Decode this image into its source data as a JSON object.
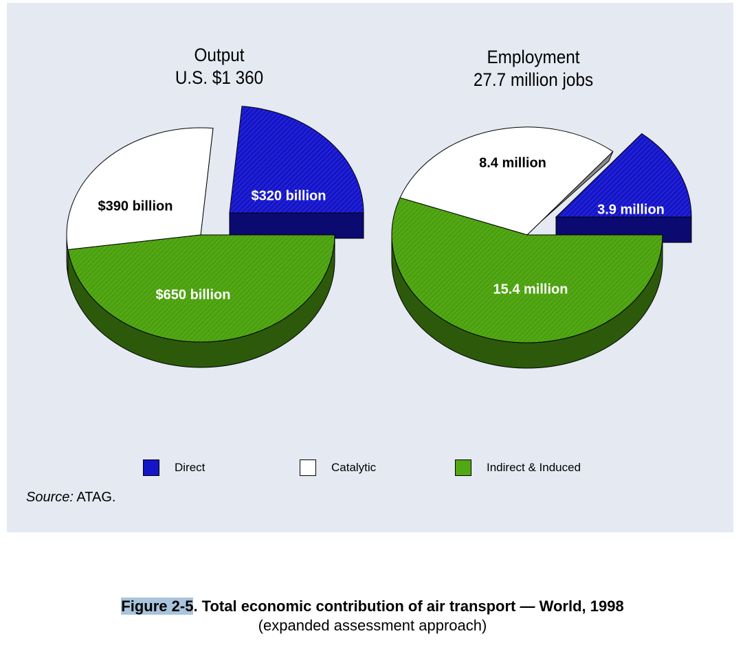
{
  "chart_data": [
    {
      "type": "pie",
      "title": "Output",
      "subtitle": "U.S. $1 360",
      "slices": [
        {
          "category": "Direct",
          "value": 320,
          "label": "$320 billion",
          "exploded": true
        },
        {
          "category": "Catalytic",
          "value": 390,
          "label": "$390 billion",
          "exploded": false
        },
        {
          "category": "Indirect & Induced",
          "value": 650,
          "label": "$650 billion",
          "exploded": false
        }
      ]
    },
    {
      "type": "pie",
      "title": "Employment",
      "subtitle": "27.7 million jobs",
      "slices": [
        {
          "category": "Direct",
          "value": 3.9,
          "label": "3.9 million",
          "exploded": true
        },
        {
          "category": "Catalytic",
          "value": 8.4,
          "label": "8.4 million",
          "exploded": false
        },
        {
          "category": "Indirect & Induced",
          "value": 15.4,
          "label": "15.4 million",
          "exploded": false
        }
      ]
    }
  ],
  "legend": [
    {
      "label": "Direct",
      "color": "#1515c8"
    },
    {
      "label": "Catalytic",
      "color": "#ffffff"
    },
    {
      "label": "Indirect & Induced",
      "color": "#52a814"
    }
  ],
  "colors": {
    "direct": "#1515c8",
    "direct_side": "#0a0a70",
    "catalytic": "#ffffff",
    "catalytic_side": "#8a8a8a",
    "indirect": "#52a814",
    "indirect_side": "#2c5a0a",
    "panel_bg": "#e4e9f2"
  },
  "source": {
    "prefix": "Source:",
    "text": " ATAG."
  },
  "caption": {
    "figure_number": "Figure 2-5",
    "title": ".  Total economic contribution of air transport — World, 1998",
    "subtitle": "(expanded assessment approach)"
  }
}
